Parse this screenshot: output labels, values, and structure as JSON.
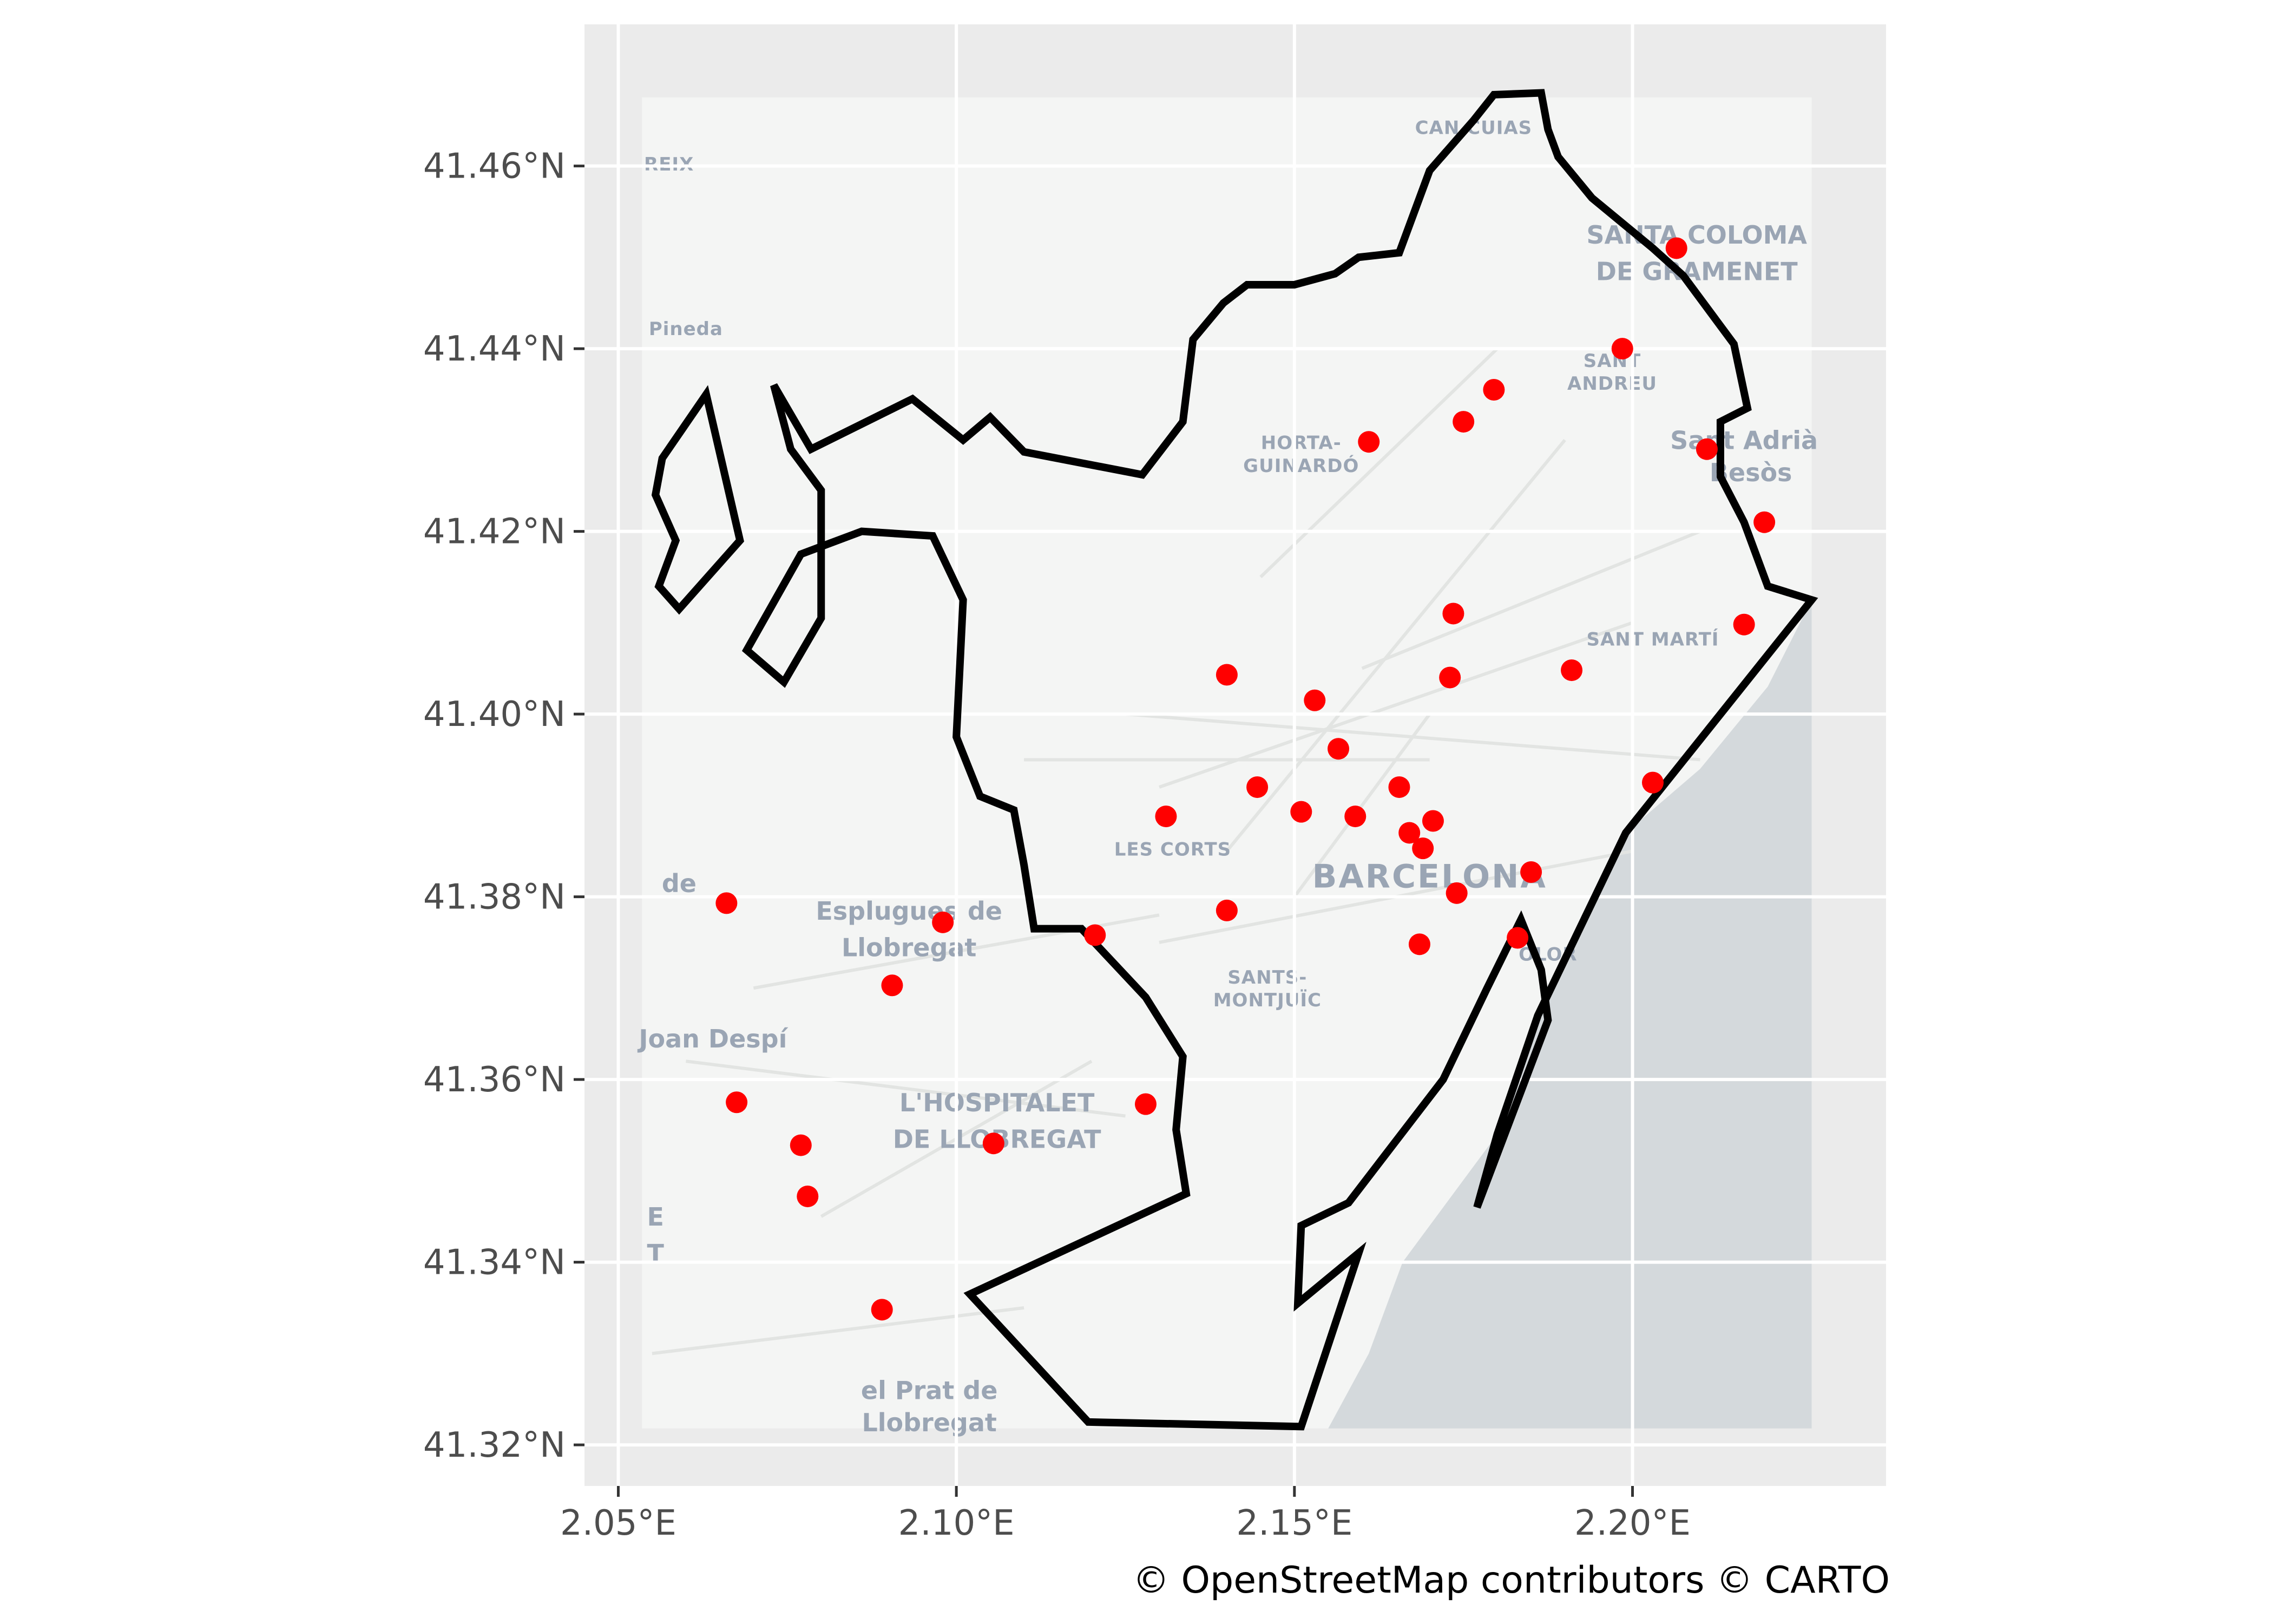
{
  "map": {
    "background_color": "#ebebeb",
    "land_color": "#f4f5f4",
    "water_color": "#d4d9dc",
    "grid_color": "#ffffff",
    "boundary_color": "#000000",
    "point_color": "#ff0000",
    "x_axis": {
      "range": [
        2.045,
        2.2375
      ],
      "ticks": [
        2.05,
        2.1,
        2.15,
        2.2
      ],
      "tick_labels": [
        "2.05°E",
        "2.10°E",
        "2.15°E",
        "2.20°E"
      ]
    },
    "y_axis": {
      "range": [
        41.3155,
        41.4755
      ],
      "ticks": [
        41.32,
        41.34,
        41.36,
        41.38,
        41.4,
        41.42,
        41.44,
        41.46
      ],
      "tick_labels": [
        "41.32°N",
        "41.34°N",
        "41.36°N",
        "41.38°N",
        "41.40°N",
        "41.42°N",
        "41.44°N",
        "41.46°N"
      ]
    },
    "tile_extent": {
      "lon": [
        2.0535,
        2.2265
      ],
      "lat": [
        41.3218,
        41.4675
      ]
    },
    "place_labels": [
      {
        "text": "CAN CUIAS",
        "lon": 2.1765,
        "lat": 41.4635,
        "size": "small"
      },
      {
        "text": "REIX",
        "lon": 2.0575,
        "lat": 41.4595,
        "size": "small"
      },
      {
        "text": "SANTA COLOMA",
        "lon": 2.2095,
        "lat": 41.4515,
        "size": "mid"
      },
      {
        "text": "DE GRAMENET",
        "lon": 2.2095,
        "lat": 41.4475,
        "size": "mid"
      },
      {
        "text": "Pineda",
        "lon": 2.06,
        "lat": 41.4415,
        "size": "small"
      },
      {
        "text": "SANT",
        "lon": 2.197,
        "lat": 41.438,
        "size": "small"
      },
      {
        "text": "ANDREU",
        "lon": 2.197,
        "lat": 41.4355,
        "size": "small"
      },
      {
        "text": "Sant Adrià",
        "lon": 2.2165,
        "lat": 41.429,
        "size": "mid"
      },
      {
        "text": "Besòs",
        "lon": 2.2175,
        "lat": 41.4255,
        "size": "mid"
      },
      {
        "text": "HORTA-",
        "lon": 2.151,
        "lat": 41.429,
        "size": "small"
      },
      {
        "text": "GUINARDÓ",
        "lon": 2.151,
        "lat": 41.4265,
        "size": "small"
      },
      {
        "text": "SANT MARTÍ",
        "lon": 2.203,
        "lat": 41.4075,
        "size": "small"
      },
      {
        "text": "LES CORTS",
        "lon": 2.132,
        "lat": 41.3845,
        "size": "small"
      },
      {
        "text": "BARCELONA",
        "lon": 2.17,
        "lat": 41.381,
        "size": "big"
      },
      {
        "text": "de",
        "lon": 2.059,
        "lat": 41.3805,
        "size": "mid"
      },
      {
        "text": "Esplugues de",
        "lon": 2.093,
        "lat": 41.3775,
        "size": "mid"
      },
      {
        "text": "Llobregat",
        "lon": 2.093,
        "lat": 41.3735,
        "size": "mid"
      },
      {
        "text": "OLOR",
        "lon": 2.1875,
        "lat": 41.373,
        "size": "small"
      },
      {
        "text": "SANTS-",
        "lon": 2.146,
        "lat": 41.3705,
        "size": "small"
      },
      {
        "text": "MONTJUÏC",
        "lon": 2.146,
        "lat": 41.368,
        "size": "small"
      },
      {
        "text": "Joan Despí",
        "lon": 2.064,
        "lat": 41.3635,
        "size": "mid"
      },
      {
        "text": "L'HOSPITALET",
        "lon": 2.106,
        "lat": 41.3565,
        "size": "mid"
      },
      {
        "text": "DE LLOBREGAT",
        "lon": 2.106,
        "lat": 41.3525,
        "size": "mid"
      },
      {
        "text": "E",
        "lon": 2.0555,
        "lat": 41.344,
        "size": "mid"
      },
      {
        "text": "T",
        "lon": 2.0555,
        "lat": 41.34,
        "size": "mid"
      },
      {
        "text": "el Prat de",
        "lon": 2.096,
        "lat": 41.325,
        "size": "mid"
      },
      {
        "text": "Llobregat",
        "lon": 2.096,
        "lat": 41.3215,
        "size": "mid"
      }
    ],
    "attribution": "© OpenStreetMap contributors © CARTO"
  },
  "chart_data": {
    "type": "scatter",
    "boundary_polygons": [
      [
        [
          2.2265,
          41.4125
        ],
        [
          2.22,
          41.414
        ],
        [
          2.2165,
          41.421
        ],
        [
          2.213,
          41.426
        ],
        [
          2.213,
          41.432
        ],
        [
          2.217,
          41.4335
        ],
        [
          2.215,
          41.4405
        ],
        [
          2.2075,
          41.448
        ],
        [
          2.203,
          41.451
        ],
        [
          2.194,
          41.4565
        ],
        [
          2.189,
          41.461
        ],
        [
          2.1875,
          41.464
        ],
        [
          2.1865,
          41.468
        ],
        [
          2.1795,
          41.4678
        ],
        [
          2.1765,
          41.465
        ],
        [
          2.17,
          41.4595
        ],
        [
          2.1655,
          41.4505
        ],
        [
          2.1595,
          41.45
        ],
        [
          2.156,
          41.4482
        ],
        [
          2.15,
          41.447
        ],
        [
          2.143,
          41.447
        ],
        [
          2.1395,
          41.445
        ],
        [
          2.135,
          41.441
        ],
        [
          2.1335,
          41.432
        ],
        [
          2.1275,
          41.4262
        ],
        [
          2.11,
          41.4287
        ],
        [
          2.105,
          41.4325
        ],
        [
          2.101,
          41.43
        ],
        [
          2.0935,
          41.4345
        ],
        [
          2.0785,
          41.429
        ],
        [
          2.073,
          41.436
        ],
        [
          2.0755,
          41.429
        ],
        [
          2.08,
          41.4245
        ],
        [
          2.08,
          41.4105
        ],
        [
          2.0745,
          41.4035
        ],
        [
          2.069,
          41.407
        ],
        [
          2.077,
          41.4175
        ],
        [
          2.086,
          41.42
        ],
        [
          2.0965,
          41.4195
        ],
        [
          2.101,
          41.4125
        ],
        [
          2.1,
          41.3975
        ],
        [
          2.1035,
          41.391
        ],
        [
          2.1085,
          41.3895
        ],
        [
          2.11,
          41.3835
        ],
        [
          2.1115,
          41.3765
        ],
        [
          2.1185,
          41.3765
        ],
        [
          2.128,
          41.369
        ],
        [
          2.1335,
          41.3625
        ],
        [
          2.1325,
          41.3545
        ],
        [
          2.134,
          41.3475
        ],
        [
          2.102,
          41.3365
        ],
        [
          2.1195,
          41.3225
        ],
        [
          2.151,
          41.322
        ],
        [
          2.1595,
          41.341
        ],
        [
          2.1505,
          41.3355
        ],
        [
          2.151,
          41.344
        ],
        [
          2.158,
          41.3465
        ],
        [
          2.172,
          41.36
        ],
        [
          2.1785,
          41.37
        ],
        [
          2.1835,
          41.3775
        ],
        [
          2.1865,
          41.372
        ],
        [
          2.1875,
          41.3665
        ],
        [
          2.177,
          41.346
        ],
        [
          2.18,
          41.354
        ],
        [
          2.186,
          41.367
        ],
        [
          2.199,
          41.387
        ],
        [
          2.2265,
          41.4125
        ]
      ],
      [
        [
          2.068,
          41.419
        ],
        [
          2.063,
          41.435
        ],
        [
          2.0565,
          41.428
        ],
        [
          2.0555,
          41.424
        ],
        [
          2.0585,
          41.419
        ],
        [
          2.056,
          41.414
        ],
        [
          2.059,
          41.4115
        ],
        [
          2.068,
          41.419
        ]
      ]
    ],
    "points": [
      {
        "lon": 2.2065,
        "lat": 41.451
      },
      {
        "lon": 2.1985,
        "lat": 41.44
      },
      {
        "lon": 2.1795,
        "lat": 41.4355
      },
      {
        "lon": 2.175,
        "lat": 41.432
      },
      {
        "lon": 2.161,
        "lat": 41.4298
      },
      {
        "lon": 2.211,
        "lat": 41.429
      },
      {
        "lon": 2.2195,
        "lat": 41.421
      },
      {
        "lon": 2.1735,
        "lat": 41.411
      },
      {
        "lon": 2.2165,
        "lat": 41.4098
      },
      {
        "lon": 2.191,
        "lat": 41.4048
      },
      {
        "lon": 2.14,
        "lat": 41.4043
      },
      {
        "lon": 2.173,
        "lat": 41.404
      },
      {
        "lon": 2.153,
        "lat": 41.4015
      },
      {
        "lon": 2.1565,
        "lat": 41.3962
      },
      {
        "lon": 2.1445,
        "lat": 41.392
      },
      {
        "lon": 2.1655,
        "lat": 41.392
      },
      {
        "lon": 2.203,
        "lat": 41.3925
      },
      {
        "lon": 2.131,
        "lat": 41.3888
      },
      {
        "lon": 2.151,
        "lat": 41.3893
      },
      {
        "lon": 2.159,
        "lat": 41.3888
      },
      {
        "lon": 2.1705,
        "lat": 41.3883
      },
      {
        "lon": 2.167,
        "lat": 41.387
      },
      {
        "lon": 2.169,
        "lat": 41.3853
      },
      {
        "lon": 2.185,
        "lat": 41.3827
      },
      {
        "lon": 2.174,
        "lat": 41.3804
      },
      {
        "lon": 2.14,
        "lat": 41.3785
      },
      {
        "lon": 2.066,
        "lat": 41.3793
      },
      {
        "lon": 2.098,
        "lat": 41.3772
      },
      {
        "lon": 2.1205,
        "lat": 41.3758
      },
      {
        "lon": 2.183,
        "lat": 41.3755
      },
      {
        "lon": 2.1685,
        "lat": 41.3748
      },
      {
        "lon": 2.0905,
        "lat": 41.3703
      },
      {
        "lon": 2.0675,
        "lat": 41.3575
      },
      {
        "lon": 2.128,
        "lat": 41.3573
      },
      {
        "lon": 2.077,
        "lat": 41.3528
      },
      {
        "lon": 2.1055,
        "lat": 41.353
      },
      {
        "lon": 2.078,
        "lat": 41.3472
      },
      {
        "lon": 2.089,
        "lat": 41.3348
      }
    ]
  }
}
